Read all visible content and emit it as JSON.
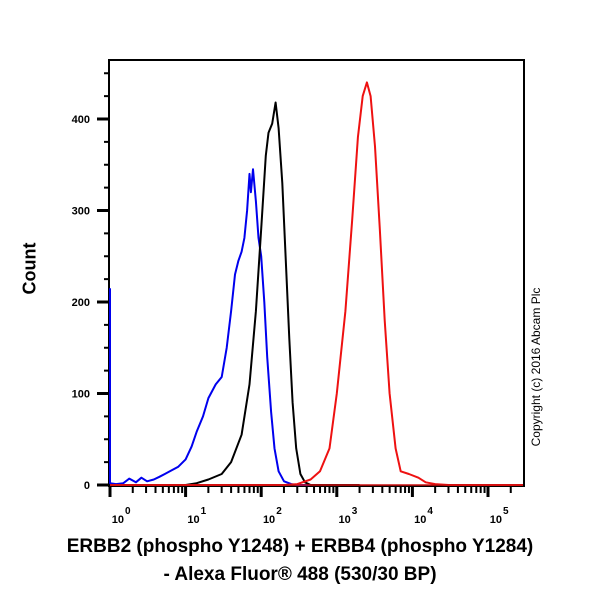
{
  "chart_data": {
    "type": "line",
    "title": "",
    "xlabel_line1": "ERBB2 (phospho Y1248) + ERBB4 (phospho Y1284)",
    "xlabel_line2": "- Alexa Fluor® 488 (530/30 BP)",
    "ylabel": "Count",
    "xscale": "log",
    "xlim": [
      0.7,
      300000
    ],
    "ylim": [
      0,
      460
    ],
    "x_tick_labels": [
      "10^0",
      "10^1",
      "10^2",
      "10^3",
      "10^4",
      "10^5"
    ],
    "y_ticks": [
      0,
      100,
      200,
      300,
      400
    ],
    "grid": false,
    "legend": null,
    "annotation": "Copyright (c) 2016 Abcam Plc",
    "series": [
      {
        "name": "blue",
        "color": "#0000ee",
        "points": [
          [
            0.72,
            215
          ],
          [
            0.75,
            100
          ],
          [
            0.78,
            15
          ],
          [
            0.85,
            5
          ],
          [
            1.0,
            2
          ],
          [
            1.2,
            1
          ],
          [
            1.5,
            2
          ],
          [
            1.8,
            7
          ],
          [
            2.2,
            3
          ],
          [
            2.6,
            8
          ],
          [
            3.1,
            4
          ],
          [
            3.8,
            6
          ],
          [
            4.5,
            9
          ],
          [
            5.3,
            12
          ],
          [
            6.5,
            16
          ],
          [
            8,
            20
          ],
          [
            10,
            28
          ],
          [
            12,
            42
          ],
          [
            14,
            58
          ],
          [
            17,
            75
          ],
          [
            20,
            95
          ],
          [
            25,
            110
          ],
          [
            30,
            118
          ],
          [
            35,
            150
          ],
          [
            40,
            190
          ],
          [
            45,
            230
          ],
          [
            50,
            245
          ],
          [
            55,
            255
          ],
          [
            60,
            270
          ],
          [
            65,
            300
          ],
          [
            70,
            340
          ],
          [
            73,
            320
          ],
          [
            78,
            345
          ],
          [
            85,
            310
          ],
          [
            92,
            270
          ],
          [
            100,
            250
          ],
          [
            110,
            200
          ],
          [
            120,
            140
          ],
          [
            135,
            80
          ],
          [
            150,
            40
          ],
          [
            170,
            15
          ],
          [
            200,
            4
          ],
          [
            250,
            1
          ],
          [
            300,
            0
          ],
          [
            1000,
            0
          ]
        ]
      },
      {
        "name": "black",
        "color": "#000000",
        "points": [
          [
            10,
            0
          ],
          [
            14,
            2
          ],
          [
            20,
            6
          ],
          [
            30,
            12
          ],
          [
            40,
            25
          ],
          [
            55,
            55
          ],
          [
            70,
            110
          ],
          [
            85,
            190
          ],
          [
            100,
            280
          ],
          [
            115,
            360
          ],
          [
            125,
            385
          ],
          [
            140,
            395
          ],
          [
            155,
            418
          ],
          [
            170,
            390
          ],
          [
            190,
            330
          ],
          [
            210,
            250
          ],
          [
            235,
            160
          ],
          [
            260,
            90
          ],
          [
            290,
            40
          ],
          [
            330,
            12
          ],
          [
            380,
            3
          ],
          [
            450,
            0
          ],
          [
            2000,
            0
          ]
        ]
      },
      {
        "name": "red",
        "color": "#ee1111",
        "points": [
          [
            0.7,
            0
          ],
          [
            200,
            0
          ],
          [
            300,
            1
          ],
          [
            450,
            6
          ],
          [
            600,
            15
          ],
          [
            800,
            40
          ],
          [
            1000,
            100
          ],
          [
            1300,
            190
          ],
          [
            1600,
            290
          ],
          [
            1900,
            380
          ],
          [
            2200,
            425
          ],
          [
            2500,
            440
          ],
          [
            2800,
            425
          ],
          [
            3200,
            370
          ],
          [
            3700,
            280
          ],
          [
            4300,
            180
          ],
          [
            5000,
            100
          ],
          [
            6000,
            40
          ],
          [
            7000,
            15
          ],
          [
            9000,
            12
          ],
          [
            12000,
            8
          ],
          [
            15000,
            3
          ],
          [
            20000,
            1
          ],
          [
            30000,
            0
          ],
          [
            300000,
            0
          ]
        ]
      }
    ]
  },
  "axes": {
    "y_tick_labels": [
      "0",
      "100",
      "200",
      "300",
      "400"
    ],
    "x_tick_bases": [
      "10",
      "10",
      "10",
      "10",
      "10",
      "10"
    ],
    "x_tick_exps": [
      "0",
      "1",
      "2",
      "3",
      "4",
      "5"
    ]
  },
  "labels": {
    "ylabel": "Count",
    "xtitle_line1": "ERBB2 (phospho Y1248) + ERBB4 (phospho Y1284)",
    "xtitle_line2": "- Alexa Fluor® 488 (530/30 BP)",
    "copyright": "Copyright (c) 2016 Abcam Plc"
  }
}
